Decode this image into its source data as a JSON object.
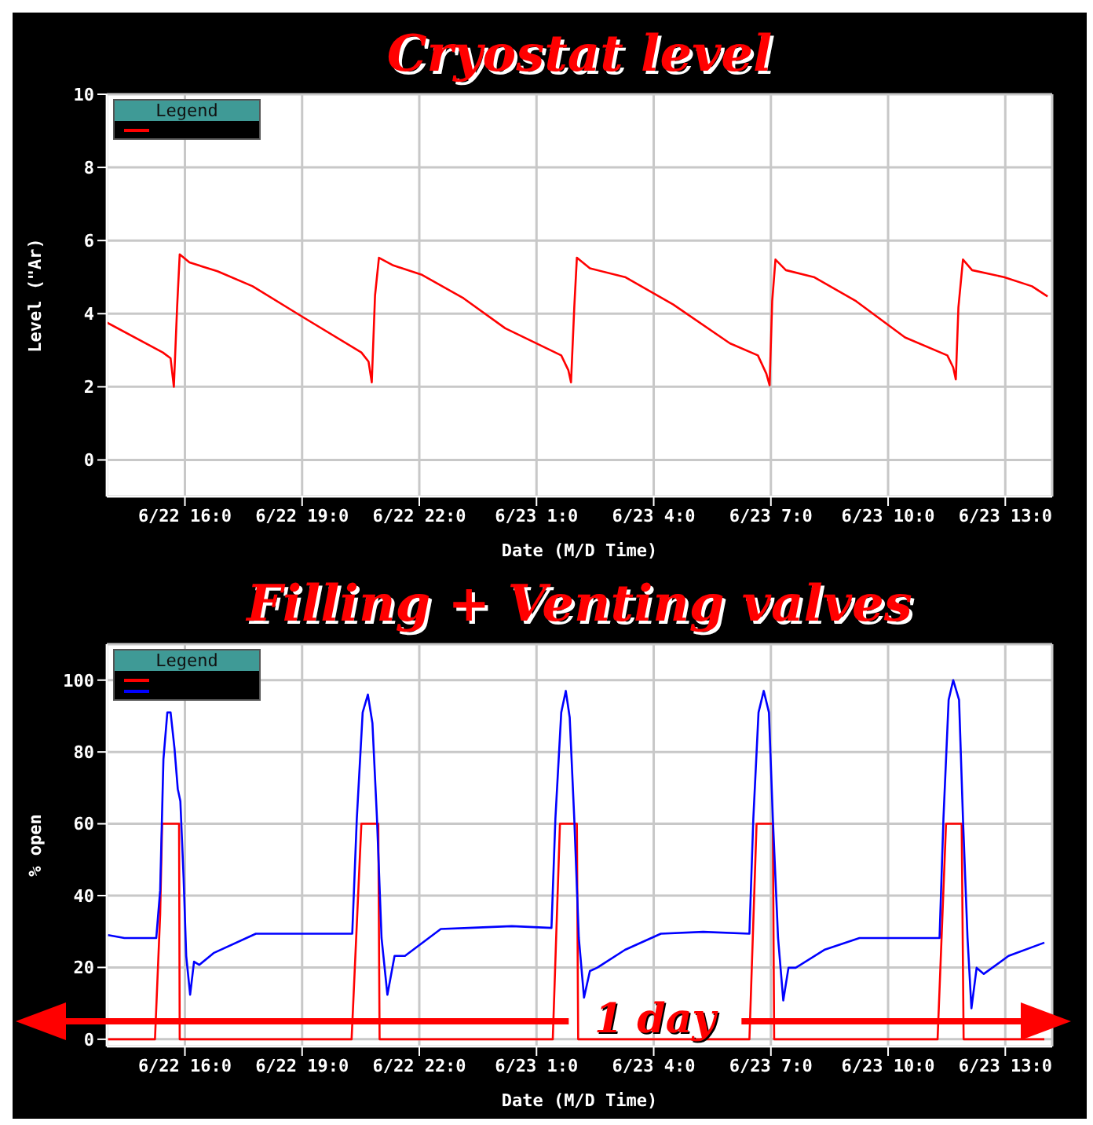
{
  "chart_data": [
    {
      "type": "line",
      "title": "Cryostat level",
      "xlabel": "Date (M/D Time)",
      "ylabel": "Level (\"Ar)",
      "xlim": [
        "--06-22T14:00",
        "--06-23T14:12"
      ],
      "xticks": [
        {
          "value": "--06-22T16:00",
          "label": "6/22 16:0"
        },
        {
          "value": "--06-22T19:00",
          "label": "6/22 19:0"
        },
        {
          "value": "--06-22T22:00",
          "label": "6/22 22:0"
        },
        {
          "value": "--06-23T01:00",
          "label": "6/23 1:0"
        },
        {
          "value": "--06-23T04:00",
          "label": "6/23 4:0"
        },
        {
          "value": "--06-23T07:00",
          "label": "6/23 7:0"
        },
        {
          "value": "--06-23T10:00",
          "label": "6/23 10:0"
        },
        {
          "value": "--06-23T13:00",
          "label": "6/23 13:0"
        }
      ],
      "ylim": [
        -1,
        10
      ],
      "yticks": [
        0,
        2,
        4,
        6,
        8,
        10
      ],
      "grid": true,
      "legend_title": "Legend",
      "series": [
        {
          "color": "#ff0000",
          "x": [
            "--06-22T14:00",
            "--06-22T15:26",
            "--06-22T15:38",
            "--06-22T15:43",
            "--06-22T15:48",
            "--06-22T15:52",
            "--06-22T16:07",
            "--06-22T16:50",
            "--06-22T17:44",
            "--06-22T19:00",
            "--06-22T20:31",
            "--06-22T20:42",
            "--06-22T20:47",
            "--06-22T20:52",
            "--06-22T20:58",
            "--06-22T21:20",
            "--06-22T22:03",
            "--06-22T23:08",
            "--06-23T00:12",
            "--06-23T01:38",
            "--06-23T01:49",
            "--06-23T01:53",
            "--06-23T01:58",
            "--06-23T02:02",
            "--06-23T02:22",
            "--06-23T03:16",
            "--06-23T04:30",
            "--06-23T05:57",
            "--06-23T06:40",
            "--06-23T06:53",
            "--06-23T06:58",
            "--06-23T07:02",
            "--06-23T07:07",
            "--06-23T07:23",
            "--06-23T08:06",
            "--06-23T09:11",
            "--06-23T10:26",
            "--06-23T11:31",
            "--06-23T11:40",
            "--06-23T11:44",
            "--06-23T11:48",
            "--06-23T11:55",
            "--06-23T12:09",
            "--06-23T12:58",
            "--06-23T13:41",
            "--06-23T14:05"
          ],
          "values": [
            3.76,
            2.94,
            2.78,
            2.0,
            4.17,
            5.62,
            5.4,
            5.16,
            4.75,
            3.92,
            2.94,
            2.69,
            2.12,
            4.5,
            5.53,
            5.32,
            5.07,
            4.42,
            3.6,
            2.86,
            2.45,
            2.12,
            4.17,
            5.53,
            5.24,
            5.0,
            4.25,
            3.19,
            2.86,
            2.36,
            2.04,
            4.34,
            5.48,
            5.19,
            5.0,
            4.34,
            3.35,
            2.86,
            2.53,
            2.2,
            4.17,
            5.48,
            5.19,
            5.0,
            4.75,
            4.47
          ]
        }
      ]
    },
    {
      "type": "line",
      "title": "Filling + Venting valves",
      "xlabel": "Date (M/D Time)",
      "ylabel": "% open",
      "xlim": [
        "--06-22T14:00",
        "--06-23T14:12"
      ],
      "xticks": [
        {
          "value": "--06-22T16:00",
          "label": "6/22 16:0"
        },
        {
          "value": "--06-22T19:00",
          "label": "6/22 19:0"
        },
        {
          "value": "--06-22T22:00",
          "label": "6/22 22:0"
        },
        {
          "value": "--06-23T01:00",
          "label": "6/23 1:0"
        },
        {
          "value": "--06-23T04:00",
          "label": "6/23 4:0"
        },
        {
          "value": "--06-23T07:00",
          "label": "6/23 7:0"
        },
        {
          "value": "--06-23T10:00",
          "label": "6/23 10:0"
        },
        {
          "value": "--06-23T13:00",
          "label": "6/23 13:0"
        }
      ],
      "ylim": [
        -2,
        110
      ],
      "yticks": [
        0,
        20,
        40,
        60,
        80,
        100
      ],
      "grid": true,
      "legend_title": "Legend",
      "annotations": [
        "1 day"
      ],
      "series": [
        {
          "color": "#ff0000",
          "x": [
            "--06-22T14:02",
            "--06-22T15:14",
            "--06-22T15:22",
            "--06-22T15:25",
            "--06-22T15:51",
            "--06-22T15:52",
            "--06-22T20:16",
            "--06-22T20:31",
            "--06-22T20:57",
            "--06-22T20:59",
            "--06-23T01:25",
            "--06-23T01:36",
            "--06-23T02:02",
            "--06-23T02:04",
            "--06-23T06:27",
            "--06-23T06:38",
            "--06-23T07:03",
            "--06-23T07:05",
            "--06-23T11:16",
            "--06-23T11:29",
            "--06-23T11:53",
            "--06-23T11:56",
            "--06-23T14:00"
          ],
          "values": [
            0,
            0,
            34.8,
            60,
            60,
            0,
            0,
            60,
            60,
            0,
            0,
            60,
            60,
            0,
            0,
            60,
            60,
            0,
            0,
            60,
            60,
            0,
            0
          ]
        },
        {
          "color": "#0000ff",
          "x": [
            "--06-22T14:02",
            "--06-22T14:27",
            "--06-22T15:16",
            "--06-22T15:22",
            "--06-22T15:27",
            "--06-22T15:33",
            "--06-22T15:38",
            "--06-22T15:44",
            "--06-22T15:49",
            "--06-22T15:53",
            "--06-22T15:58",
            "--06-22T16:02",
            "--06-22T16:08",
            "--06-22T16:14",
            "--06-22T16:22",
            "--06-22T16:44",
            "--06-22T17:49",
            "--06-22T18:55",
            "--06-22T20:17",
            "--06-22T20:24",
            "--06-22T20:33",
            "--06-22T20:41",
            "--06-22T20:48",
            "--06-22T20:55",
            "--06-22T21:02",
            "--06-22T21:11",
            "--06-22T21:22",
            "--06-22T21:38",
            "--06-22T22:33",
            "--06-22T23:16",
            "--06-23T00:22",
            "--06-23T01:23",
            "--06-23T01:29",
            "--06-23T01:38",
            "--06-23T01:45",
            "--06-23T01:51",
            "--06-23T01:58",
            "--06-23T02:05",
            "--06-23T02:13",
            "--06-23T02:22",
            "--06-23T02:33",
            "--06-23T03:16",
            "--06-23T04:11",
            "--06-23T05:16",
            "--06-23T06:27",
            "--06-23T06:33",
            "--06-23T06:41",
            "--06-23T06:49",
            "--06-23T06:57",
            "--06-23T07:03",
            "--06-23T07:11",
            "--06-23T07:19",
            "--06-23T07:27",
            "--06-23T07:38",
            "--06-23T08:22",
            "--06-23T09:16",
            "--06-23T10:11",
            "--06-23T11:19",
            "--06-23T11:25",
            "--06-23T11:33",
            "--06-23T11:40",
            "--06-23T11:49",
            "--06-23T11:55",
            "--06-23T12:02",
            "--06-23T12:08",
            "--06-23T12:16",
            "--06-23T12:27",
            "--06-23T13:05",
            "--06-23T14:00"
          ],
          "values": [
            29,
            28.2,
            28.2,
            41.5,
            78,
            91,
            91,
            81,
            69.7,
            66.3,
            44.8,
            23.2,
            12.4,
            21.6,
            20.7,
            24,
            29.4,
            29.4,
            29.4,
            61.4,
            91,
            96,
            88,
            61.4,
            28.2,
            12.4,
            23.2,
            23.2,
            30.7,
            31,
            31.5,
            31,
            61.4,
            91,
            97,
            89.6,
            61.4,
            28.2,
            11.6,
            19,
            19.9,
            24.9,
            29.4,
            29.9,
            29.4,
            61.4,
            91,
            97,
            91,
            61.4,
            28.2,
            10.8,
            19.9,
            19.9,
            24.9,
            28.2,
            28.2,
            28.2,
            61.4,
            94.5,
            100,
            94.5,
            61.4,
            28.2,
            8.6,
            19.9,
            18.2,
            23.2,
            26.9
          ]
        }
      ]
    }
  ]
}
